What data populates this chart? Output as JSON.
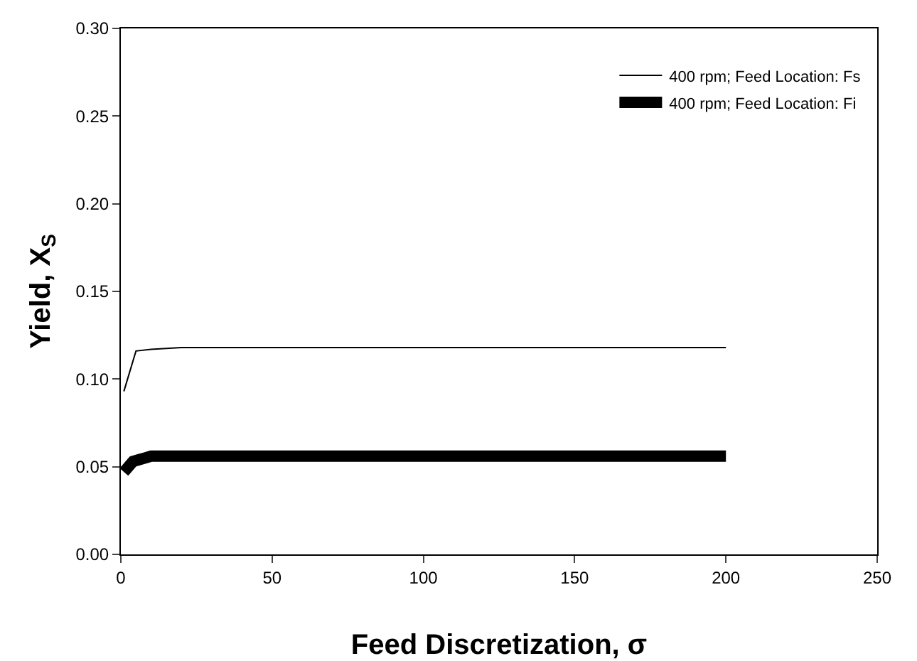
{
  "chart_data": {
    "type": "line",
    "xlabel": "Feed Discretization, σ",
    "ylabel": "Yield, X$_{S}$",
    "xlim": [
      0,
      250
    ],
    "xticks": [
      0,
      50,
      100,
      150,
      200,
      250
    ],
    "ylim": [
      0,
      0.3
    ],
    "yticks": [
      {
        "value": 0,
        "label": "0.00"
      },
      {
        "value": 0.05,
        "label": "0.05"
      },
      {
        "value": 0.1,
        "label": "0.10"
      },
      {
        "value": 0.15,
        "label": "0.15"
      },
      {
        "value": 0.2,
        "label": "0.20"
      },
      {
        "value": 0.25,
        "label": "0.25"
      },
      {
        "value": 0.3,
        "label": "0.30"
      }
    ],
    "legend": "top right",
    "grid": false,
    "series": [
      {
        "name": "400 rpm; Feed Location: Fs",
        "color": "#000000",
        "x": [
          1,
          5,
          10,
          20,
          50,
          100,
          150,
          200
        ],
        "values": [
          0.093,
          0.116,
          0.117,
          0.118,
          0.118,
          0.118,
          0.118,
          0.118
        ]
      },
      {
        "name": "400 rpm; Feed Location: Fi",
        "color": "#000000",
        "x": [
          1,
          2,
          3,
          4,
          6,
          8,
          10,
          15,
          20,
          50,
          100,
          150,
          200
        ],
        "values": [
          0.047,
          0.049,
          0.051,
          0.053,
          0.054,
          0.055,
          0.056,
          0.056,
          0.056,
          0.056,
          0.056,
          0.056,
          0.056
        ]
      }
    ]
  }
}
